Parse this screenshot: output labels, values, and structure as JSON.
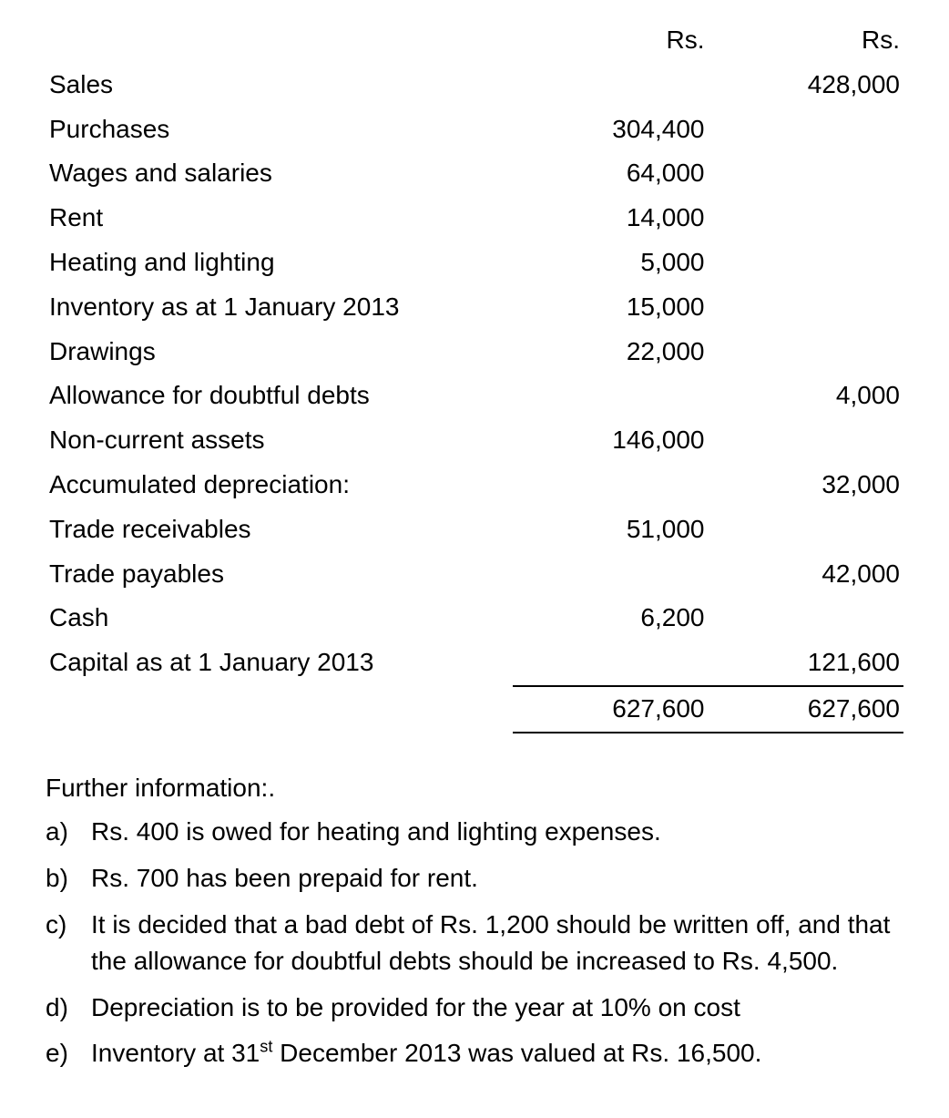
{
  "table": {
    "header": {
      "col1": "Rs.",
      "col2": "Rs."
    },
    "rows": [
      {
        "label": "Sales",
        "col1": "",
        "col2": "428,000"
      },
      {
        "label": "Purchases",
        "col1": "304,400",
        "col2": ""
      },
      {
        "label": "Wages and salaries",
        "col1": "64,000",
        "col2": ""
      },
      {
        "label": "Rent",
        "col1": "14,000",
        "col2": ""
      },
      {
        "label": "Heating and lighting",
        "col1": "5,000",
        "col2": ""
      },
      {
        "label": "Inventory as at 1 January 2013",
        "col1": "15,000",
        "col2": ""
      },
      {
        "label": "Drawings",
        "col1": "22,000",
        "col2": ""
      },
      {
        "label": "Allowance for doubtful debts",
        "col1": "",
        "col2": "4,000"
      },
      {
        "label": "Non-current assets",
        "col1": "146,000",
        "col2": ""
      },
      {
        "label": "Accumulated depreciation:",
        "col1": "",
        "col2": "32,000"
      },
      {
        "label": "Trade receivables",
        "col1": "51,000",
        "col2": ""
      },
      {
        "label": "Trade payables",
        "col1": "",
        "col2": "42,000"
      },
      {
        "label": "Cash",
        "col1": "6,200",
        "col2": ""
      },
      {
        "label": "Capital as at 1 January 2013",
        "col1": "",
        "col2": "121,600"
      }
    ],
    "totals": {
      "col1": "627,600",
      "col2": "627,600"
    }
  },
  "further": {
    "title": "Further information:.",
    "notes": [
      {
        "letter": "a)",
        "text": "Rs. 400 is owed for heating and lighting expenses."
      },
      {
        "letter": "b)",
        "text": "Rs. 700 has been prepaid for rent."
      },
      {
        "letter": "c)",
        "text": "It is decided that a bad debt of Rs. 1,200 should be written off, and that the allowance for doubtful debts should be increased to Rs. 4,500."
      },
      {
        "letter": "d)",
        "text": "Depreciation is to be provided for the year at 10% on cost"
      },
      {
        "letter": "e)",
        "html": "Inventory at 31<sup>st</sup> December 2013 was valued at Rs. 16,500."
      }
    ]
  }
}
